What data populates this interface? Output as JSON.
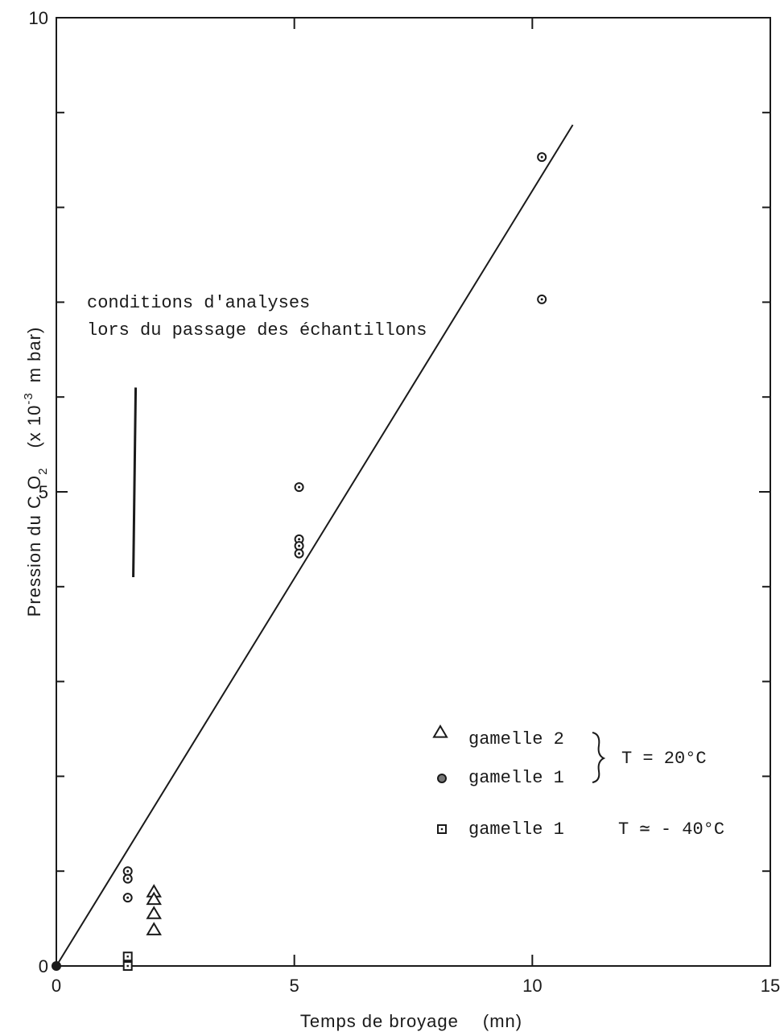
{
  "chart_data": {
    "type": "scatter",
    "x_axis": {
      "label": "Temps de broyage",
      "unit": "(mn)",
      "range": [
        0,
        15
      ],
      "ticks": [
        0,
        5,
        10,
        15
      ],
      "tick_labels": [
        "0",
        "5",
        "10",
        "15"
      ]
    },
    "y_axis": {
      "label_prefix": "Pression du C O",
      "label_subscript": "2",
      "unit_prefix": "(x 10",
      "unit_exponent": "-3",
      "unit_suffix": "m bar)",
      "range": [
        0,
        10
      ],
      "ticks": [
        0,
        5,
        10
      ],
      "tick_labels": [
        "0",
        "5",
        "10"
      ],
      "minor_ticks": [
        1,
        2,
        3,
        4,
        6,
        7,
        8,
        9
      ]
    },
    "grid": false,
    "series": [
      {
        "name": "gamelle 2",
        "marker": "triangle",
        "points": [
          [
            2.05,
            0.78
          ],
          [
            2.05,
            0.7
          ],
          [
            2.05,
            0.55
          ],
          [
            2.05,
            0.38
          ]
        ]
      },
      {
        "name": "gamelle 1",
        "marker": "circle-dot",
        "points": [
          [
            1.5,
            1.0
          ],
          [
            1.5,
            0.92
          ],
          [
            1.5,
            0.72
          ],
          [
            0,
            0
          ],
          [
            5.1,
            5.05
          ],
          [
            5.1,
            4.5
          ],
          [
            5.1,
            4.43
          ],
          [
            5.1,
            4.35
          ],
          [
            10.2,
            8.53
          ],
          [
            10.2,
            7.03
          ]
        ]
      },
      {
        "name": "gamelle 1",
        "marker": "square",
        "points": [
          [
            1.5,
            0.1
          ],
          [
            1.5,
            0.0
          ]
        ]
      }
    ],
    "fit_line": {
      "x": [
        0,
        10.85
      ],
      "y": [
        0,
        8.87
      ]
    },
    "conditions_bar": {
      "x": 1.65,
      "y": [
        4.1,
        6.1
      ]
    },
    "annotations": {
      "conditions_line1": "conditions d'analyses",
      "conditions_line2": "lors du passage des échantillons"
    },
    "legend": {
      "placement": "bottom-right",
      "items": [
        {
          "marker": "triangle",
          "label": "gamelle 2"
        },
        {
          "marker": "circle-dot",
          "label": "gamelle 1"
        },
        {
          "marker": "square",
          "label": "gamelle 1"
        }
      ],
      "temp_20": "T = 20°C",
      "temp_minus40": "T ≃ - 40°C"
    }
  }
}
